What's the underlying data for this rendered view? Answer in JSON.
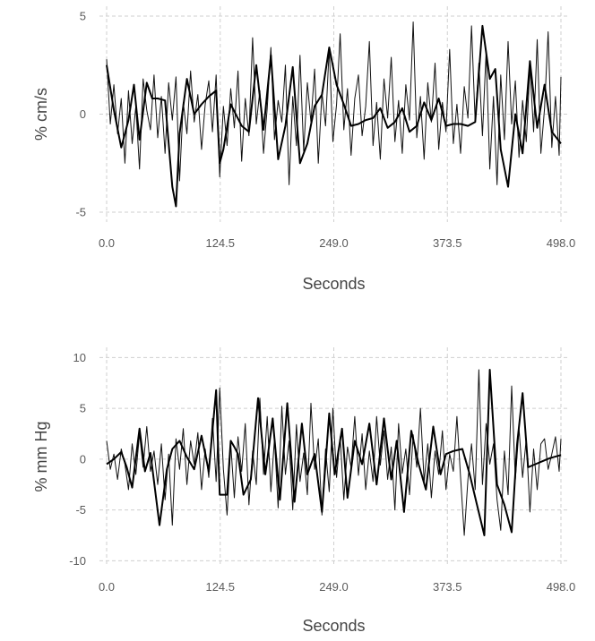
{
  "chart_data": [
    {
      "type": "line",
      "xlabel": "Seconds",
      "ylabel": "% cm/s",
      "xlim": [
        0,
        498
      ],
      "ylim": [
        -5.5,
        5.5
      ],
      "x_ticks": [
        0,
        124.5,
        249,
        373.5,
        498
      ],
      "x_tick_labels": [
        "0.0",
        "124.5",
        "249.0",
        "373.5",
        "498.0"
      ],
      "y_ticks": [
        -5,
        0,
        5
      ],
      "y_tick_labels": [
        "-5",
        "0",
        "5"
      ],
      "grid": true,
      "series": [
        {
          "style": "thin",
          "x": [
            0,
            4,
            8,
            12,
            16,
            20,
            24,
            28,
            32,
            36,
            40,
            44,
            48,
            52,
            56,
            60,
            64,
            68,
            72,
            76,
            80,
            84,
            88,
            92,
            96,
            100,
            104,
            108,
            112,
            116,
            120,
            124,
            128,
            132,
            136,
            140,
            144,
            148,
            152,
            156,
            160,
            164,
            168,
            172,
            176,
            180,
            184,
            188,
            192,
            196,
            200,
            204,
            208,
            212,
            216,
            220,
            224,
            228,
            232,
            236,
            240,
            244,
            248,
            252,
            256,
            260,
            264,
            268,
            272,
            276,
            280,
            284,
            288,
            292,
            296,
            300,
            304,
            308,
            312,
            316,
            320,
            324,
            328,
            332,
            336,
            340,
            344,
            348,
            352,
            356,
            360,
            364,
            368,
            372,
            376,
            380,
            384,
            388,
            392,
            396,
            400,
            404,
            408,
            412,
            416,
            420,
            424,
            428,
            432,
            436,
            440,
            444,
            448,
            452,
            456,
            460,
            464,
            468,
            472,
            476,
            480,
            484,
            488,
            492,
            496,
            498
          ],
          "y": [
            2.8,
            -0.5,
            1.5,
            -1.0,
            0.8,
            -2.5,
            1.2,
            -1.5,
            0.4,
            -2.8,
            1.8,
            0.2,
            -0.8,
            2.0,
            -1.2,
            0.9,
            -2.0,
            1.6,
            -0.3,
            1.9,
            -3.4,
            0.6,
            -1.0,
            2.2,
            -0.4,
            1.0,
            -1.8,
            0.5,
            1.7,
            -0.9,
            2.0,
            -3.2,
            0.4,
            -1.6,
            1.3,
            -0.7,
            2.2,
            -2.4,
            0.8,
            -1.1,
            3.9,
            -0.5,
            1.2,
            -2.0,
            0.3,
            3.4,
            -1.3,
            0.7,
            -0.4,
            2.5,
            -3.6,
            0.9,
            -1.6,
            3.0,
            -1.9,
            1.6,
            -0.4,
            2.3,
            -2.5,
            1.1,
            -0.6,
            3.4,
            -1.4,
            0.5,
            4.1,
            -0.8,
            1.3,
            -2.1,
            0.8,
            2.0,
            -1.1,
            0.4,
            3.7,
            -1.6,
            0.6,
            -2.3,
            1.8,
            -0.2,
            2.9,
            -1.4,
            0.7,
            -2.0,
            1.5,
            -0.3,
            4.7,
            -1.2,
            0.9,
            -2.3,
            1.6,
            -0.4,
            2.6,
            -1.8,
            0.6,
            -0.9,
            3.3,
            -1.5,
            0.5,
            -2.0,
            1.4,
            -0.2,
            4.5,
            -0.4,
            2.6,
            -1.1,
            3.2,
            -2.8,
            0.9,
            -3.6,
            2.0,
            -1.3,
            3.7,
            -0.5,
            1.7,
            -2.2,
            0.7,
            -1.4,
            2.4,
            -0.9,
            3.8,
            -2.0,
            0.3,
            4.2,
            -1.7,
            0.9,
            -2.1,
            1.9
          ]
        },
        {
          "style": "thick",
          "x": [
            0,
            8,
            16,
            24,
            30,
            36,
            44,
            50,
            56,
            64,
            72,
            76,
            80,
            88,
            96,
            104,
            112,
            120,
            124,
            128,
            136,
            148,
            156,
            164,
            172,
            180,
            188,
            196,
            204,
            212,
            220,
            228,
            236,
            244,
            252,
            260,
            268,
            276,
            284,
            292,
            300,
            308,
            316,
            324,
            332,
            340,
            348,
            356,
            364,
            372,
            380,
            388,
            396,
            404,
            412,
            420,
            426,
            432,
            440,
            448,
            456,
            464,
            472,
            480,
            488,
            498
          ],
          "y": [
            2.5,
            0.2,
            -1.7,
            -0.3,
            1.5,
            -1.3,
            1.6,
            0.8,
            0.8,
            0.7,
            -3.7,
            -4.7,
            -1.0,
            1.8,
            0.0,
            0.5,
            0.9,
            1.2,
            -2.5,
            -1.8,
            0.5,
            -0.6,
            -0.9,
            2.5,
            -0.8,
            3.0,
            -2.3,
            -0.6,
            2.4,
            -2.5,
            -1.5,
            0.4,
            1.0,
            3.4,
            1.5,
            0.5,
            -0.6,
            -0.5,
            -0.3,
            -0.2,
            0.3,
            -0.7,
            -0.4,
            0.3,
            -0.9,
            -0.6,
            0.6,
            -0.3,
            0.8,
            -0.6,
            -0.5,
            -0.5,
            -0.6,
            -0.4,
            4.5,
            1.8,
            2.3,
            -1.8,
            -3.7,
            0.0,
            -2.0,
            2.7,
            -0.7,
            1.5,
            -0.9,
            -1.5
          ]
        }
      ]
    },
    {
      "type": "line",
      "xlabel": "Seconds",
      "ylabel": "% mm Hg",
      "xlim": [
        0,
        498
      ],
      "ylim": [
        -10.5,
        11
      ],
      "x_ticks": [
        0,
        124.5,
        249,
        373.5,
        498
      ],
      "x_tick_labels": [
        "0.0",
        "124.5",
        "249.0",
        "373.5",
        "498.0"
      ],
      "y_ticks": [
        -10,
        -5,
        0,
        5,
        10
      ],
      "y_tick_labels": [
        "-10",
        "-5",
        "0",
        "5",
        "10"
      ],
      "grid": true,
      "series": [
        {
          "style": "thin",
          "x": [
            0,
            4,
            8,
            12,
            16,
            20,
            24,
            28,
            32,
            36,
            40,
            44,
            48,
            52,
            56,
            60,
            64,
            68,
            72,
            76,
            80,
            84,
            88,
            92,
            96,
            100,
            104,
            108,
            112,
            116,
            120,
            124,
            128,
            132,
            136,
            140,
            144,
            148,
            152,
            156,
            160,
            164,
            168,
            172,
            176,
            180,
            184,
            188,
            192,
            196,
            200,
            204,
            208,
            212,
            216,
            220,
            224,
            228,
            232,
            236,
            240,
            244,
            248,
            252,
            256,
            260,
            264,
            268,
            272,
            276,
            280,
            284,
            288,
            292,
            296,
            300,
            304,
            308,
            312,
            316,
            320,
            324,
            328,
            332,
            336,
            340,
            344,
            348,
            352,
            356,
            360,
            364,
            368,
            372,
            376,
            380,
            384,
            388,
            392,
            396,
            400,
            404,
            408,
            412,
            416,
            420,
            424,
            428,
            432,
            436,
            440,
            444,
            448,
            452,
            456,
            460,
            464,
            468,
            472,
            476,
            480,
            484,
            488,
            492,
            496,
            498
          ],
          "y": [
            1.8,
            -1.0,
            0.5,
            -2.0,
            1.0,
            -0.5,
            -3.0,
            1.5,
            -1.5,
            2.5,
            -0.8,
            3.2,
            -1.2,
            0.8,
            -2.5,
            1.5,
            -4.0,
            0.5,
            -6.5,
            2.0,
            -1.0,
            3.0,
            -2.5,
            1.8,
            -0.5,
            2.6,
            -3.0,
            1.0,
            -1.8,
            4.0,
            -2.2,
            7.0,
            -1.0,
            -5.5,
            1.5,
            -3.8,
            2.2,
            -1.2,
            3.5,
            -4.5,
            0.8,
            -2.5,
            6.0,
            -1.5,
            4.2,
            -3.2,
            2.0,
            -4.8,
            5.2,
            -1.5,
            1.8,
            -5.0,
            3.4,
            -2.2,
            0.6,
            -3.5,
            5.5,
            -1.0,
            2.0,
            -5.5,
            1.0,
            -3.2,
            5.0,
            -1.8,
            2.2,
            -4.0,
            1.2,
            -0.8,
            4.2,
            -1.6,
            2.5,
            -3.0,
            0.8,
            -2.2,
            4.2,
            -0.6,
            2.8,
            -2.0,
            1.2,
            -5.0,
            3.5,
            -1.4,
            1.0,
            -3.5,
            2.4,
            -0.8,
            5.0,
            -2.2,
            1.5,
            -3.8,
            0.8,
            -1.5,
            2.8,
            -3.0,
            0.5,
            -1.2,
            4.2,
            -1.8,
            -7.5,
            -2.0,
            1.5,
            -3.0,
            8.8,
            -2.5,
            3.5,
            -0.5,
            1.5,
            -4.0,
            -7.0,
            0.8,
            -3.5,
            7.2,
            -2.0,
            3.0,
            -1.8,
            2.0,
            -5.2,
            1.0,
            -3.0,
            1.5,
            2.0,
            -1.0,
            0.5,
            2.2,
            -1.2,
            2.0
          ]
        },
        {
          "style": "thick",
          "x": [
            0,
            8,
            16,
            22,
            28,
            36,
            42,
            48,
            58,
            66,
            72,
            80,
            88,
            96,
            104,
            112,
            120,
            124,
            128,
            132,
            136,
            140,
            144,
            150,
            158,
            166,
            174,
            182,
            190,
            198,
            206,
            214,
            220,
            228,
            236,
            244,
            250,
            258,
            264,
            272,
            280,
            288,
            296,
            304,
            312,
            318,
            326,
            334,
            342,
            350,
            358,
            366,
            372,
            380,
            390,
            398,
            406,
            414,
            420,
            428,
            436,
            444,
            450,
            456,
            462,
            470,
            478,
            486,
            494,
            498
          ],
          "y": [
            -0.5,
            0.0,
            0.7,
            -0.8,
            -2.8,
            3.0,
            -1.2,
            0.6,
            -6.5,
            -1.0,
            1.0,
            1.8,
            0.2,
            -1.0,
            2.3,
            -1.2,
            6.8,
            -3.5,
            -3.5,
            -3.5,
            1.8,
            1.2,
            0.5,
            -3.5,
            -2.0,
            6.0,
            -1.5,
            4.0,
            -4.0,
            5.5,
            -4.2,
            3.5,
            -1.5,
            0.5,
            -5.2,
            4.5,
            -1.5,
            3.0,
            -3.8,
            1.8,
            -0.5,
            3.5,
            -2.5,
            4.0,
            -2.0,
            1.8,
            -5.2,
            2.8,
            -0.5,
            -3.0,
            3.2,
            -1.5,
            0.5,
            0.8,
            1.0,
            -1.5,
            -4.5,
            -7.5,
            8.8,
            -2.5,
            -4.5,
            -7.2,
            1.5,
            6.5,
            -0.8,
            -0.5,
            -0.2,
            0.1,
            0.3,
            0.4
          ]
        }
      ]
    }
  ]
}
